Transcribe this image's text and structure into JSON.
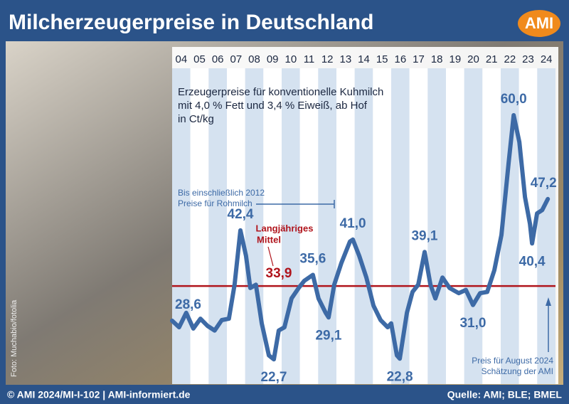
{
  "title": "Milcherzeugerpreise in Deutschland",
  "logo": "AMI",
  "photo_credit": "Foto: Muchabio/fotolia",
  "footer_left": "© AMI 2024/MI-I-102 | AMI-informiert.de",
  "footer_right": "Quelle: AMI; BLE; BMEL",
  "chart_data": {
    "type": "line",
    "subtitle": [
      "Erzeugerpreise für konventionelle Kuhmilch",
      "mit 4,0 % Fett und 3,4 % Eiweiß, ab Hof",
      "in Ct/kg"
    ],
    "annotations": {
      "rohmilch": [
        "Bis einschließlich 2012",
        "Preise für Rohmilch"
      ],
      "estimate": [
        "Preis für August 2024",
        "Schätzung der AMI"
      ]
    },
    "color": "#3d6aa6",
    "x": [
      2004.0,
      2004.38,
      2004.77,
      2005.16,
      2005.55,
      2005.94,
      2006.33,
      2006.72,
      2007.11,
      2007.42,
      2007.74,
      2008.05,
      2008.28,
      2008.59,
      2008.91,
      2009.3,
      2009.57,
      2009.84,
      2010.15,
      2010.54,
      2010.93,
      2011.24,
      2011.71,
      2012.02,
      2012.41,
      2012.57,
      2012.88,
      2013.27,
      2013.74,
      2013.9,
      2014.25,
      2014.64,
      2015.03,
      2015.42,
      2015.81,
      2016.0,
      2016.31,
      2016.47,
      2016.86,
      2017.17,
      2017.48,
      2017.83,
      2018.15,
      2018.42,
      2018.81,
      2019.2,
      2019.7,
      2020.09,
      2020.48,
      2020.87,
      2021.26,
      2021.65,
      2022.04,
      2022.43,
      2022.71,
      2023.02,
      2023.33,
      2023.6,
      2023.72,
      2023.99,
      2024.27,
      2024.58
    ],
    "values": [
      28.6,
      27.6,
      29.8,
      27.4,
      28.9,
      27.8,
      27.1,
      28.7,
      28.9,
      34.1,
      42.4,
      38.5,
      33.6,
      34.1,
      28.2,
      23.3,
      22.7,
      27.1,
      27.6,
      32.0,
      33.6,
      34.7,
      35.6,
      32.0,
      29.8,
      29.1,
      34.1,
      37.4,
      40.7,
      41.0,
      38.5,
      35.2,
      30.9,
      28.7,
      27.6,
      28.2,
      23.3,
      22.8,
      29.8,
      33.0,
      34.1,
      39.1,
      34.1,
      32.0,
      35.2,
      33.6,
      32.8,
      33.3,
      31.0,
      32.8,
      33.0,
      36.3,
      41.7,
      52.6,
      60.0,
      55.9,
      47.5,
      43.4,
      40.4,
      45.0,
      45.5,
      47.2
    ],
    "value_labels": [
      "28,6",
      null,
      null,
      null,
      null,
      null,
      null,
      null,
      null,
      null,
      "42,4",
      null,
      null,
      null,
      null,
      null,
      "22,7",
      null,
      null,
      null,
      null,
      null,
      "35,6",
      null,
      null,
      "29,1",
      null,
      null,
      null,
      "41,0",
      null,
      null,
      null,
      null,
      null,
      null,
      null,
      "22,8",
      null,
      null,
      null,
      "39,1",
      null,
      null,
      null,
      null,
      null,
      null,
      "31,0",
      null,
      null,
      null,
      null,
      null,
      "60,0",
      null,
      null,
      null,
      "40,4",
      null,
      null,
      "47,2"
    ],
    "mean": {
      "value": 33.9,
      "label": "33,9",
      "name": [
        "Langjähriges",
        "Mittel"
      ],
      "color": "#b0141c"
    },
    "xlim": [
      2004,
      2025
    ],
    "xticks": [
      {
        "value": 2004.5,
        "label": "04"
      },
      {
        "value": 2005.5,
        "label": "05"
      },
      {
        "value": 2006.5,
        "label": "06"
      },
      {
        "value": 2007.5,
        "label": "07"
      },
      {
        "value": 2008.5,
        "label": "08"
      },
      {
        "value": 2009.5,
        "label": "09"
      },
      {
        "value": 2010.5,
        "label": "10"
      },
      {
        "value": 2011.5,
        "label": "11"
      },
      {
        "value": 2012.5,
        "label": "12"
      },
      {
        "value": 2013.5,
        "label": "13"
      },
      {
        "value": 2014.5,
        "label": "14"
      },
      {
        "value": 2015.5,
        "label": "15"
      },
      {
        "value": 2016.5,
        "label": "16"
      },
      {
        "value": 2017.5,
        "label": "17"
      },
      {
        "value": 2018.5,
        "label": "18"
      },
      {
        "value": 2019.5,
        "label": "19"
      },
      {
        "value": 2020.5,
        "label": "20"
      },
      {
        "value": 2021.5,
        "label": "21"
      },
      {
        "value": 2022.5,
        "label": "22"
      },
      {
        "value": 2023.5,
        "label": "23"
      },
      {
        "value": 2024.5,
        "label": "24"
      }
    ],
    "ylim": [
      20,
      65
    ]
  }
}
